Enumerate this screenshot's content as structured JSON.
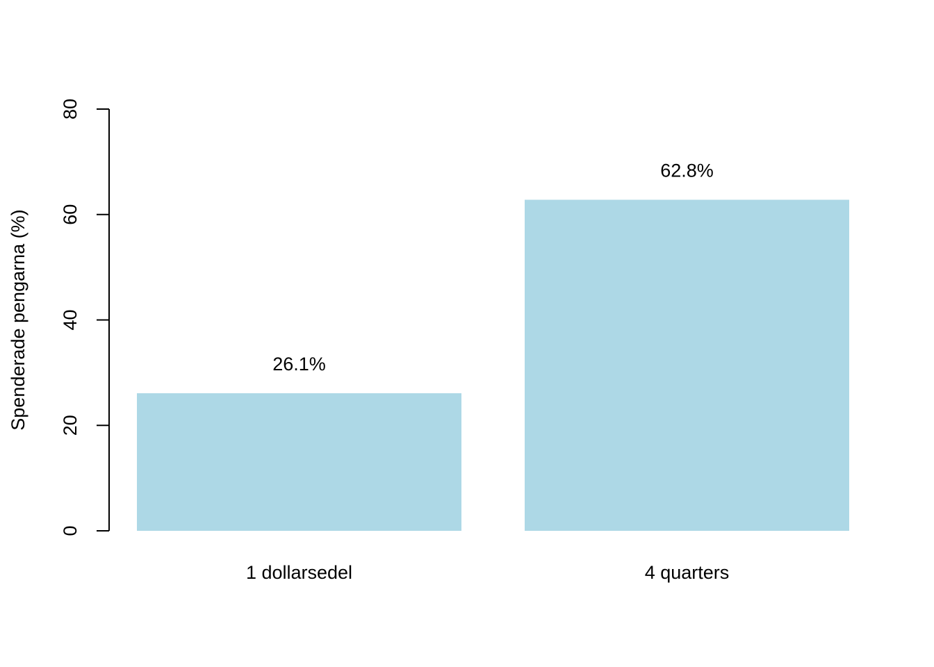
{
  "chart_data": {
    "type": "bar",
    "title": "",
    "xlabel": "",
    "ylabel": "Spenderade pengarna (%)",
    "categories": [
      "1 dollarsedel",
      "4 quarters"
    ],
    "values": [
      26.1,
      62.8
    ],
    "value_labels": [
      "26.1%",
      "62.8%"
    ],
    "ylim": [
      0,
      80
    ],
    "yticks": [
      0,
      20,
      40,
      60,
      80
    ],
    "ytick_labels": [
      "0",
      "20",
      "40",
      "60",
      "80"
    ],
    "bar_color": "#add8e6",
    "grid": false,
    "legend": "none"
  }
}
